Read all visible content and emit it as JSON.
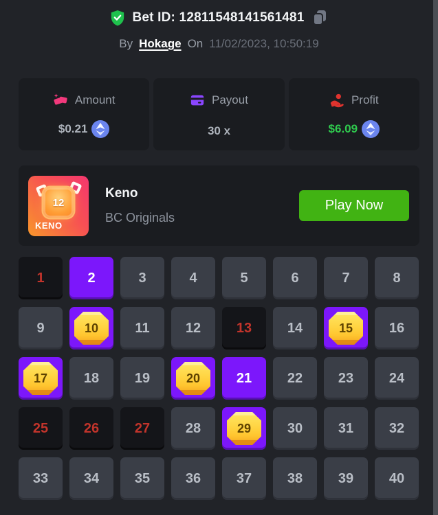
{
  "header": {
    "bet_id": "Bet ID: 12811548141561481",
    "by_label": "By",
    "username": "Hokage",
    "on_label": "On",
    "timestamp": "11/02/2023, 10:50:19"
  },
  "stats": [
    {
      "label": "Amount",
      "value": "$0.21",
      "icon": "cash-icon",
      "currency_icon": "ethereum-icon"
    },
    {
      "label": "Payout",
      "value": "30 x",
      "icon": "credit-card-icon",
      "currency_icon": null
    },
    {
      "label": "Profit",
      "value": "$6.09",
      "icon": "hand-coin-icon",
      "currency_icon": "ethereum-icon"
    }
  ],
  "game_card": {
    "art_label": "KENO",
    "art_number": "12",
    "title": "Keno",
    "provider": "BC Originals",
    "play_button_label": "Play Now"
  },
  "keno_grid": {
    "columns": 8,
    "rows": 5,
    "cells": [
      {
        "n": 1,
        "state": "drawn"
      },
      {
        "n": 2,
        "state": "picked"
      },
      {
        "n": 3,
        "state": "default"
      },
      {
        "n": 4,
        "state": "default"
      },
      {
        "n": 5,
        "state": "default"
      },
      {
        "n": 6,
        "state": "default"
      },
      {
        "n": 7,
        "state": "default"
      },
      {
        "n": 8,
        "state": "default"
      },
      {
        "n": 9,
        "state": "default"
      },
      {
        "n": 10,
        "state": "hit"
      },
      {
        "n": 11,
        "state": "default"
      },
      {
        "n": 12,
        "state": "default"
      },
      {
        "n": 13,
        "state": "drawn"
      },
      {
        "n": 14,
        "state": "default"
      },
      {
        "n": 15,
        "state": "hit"
      },
      {
        "n": 16,
        "state": "default"
      },
      {
        "n": 17,
        "state": "hit"
      },
      {
        "n": 18,
        "state": "default"
      },
      {
        "n": 19,
        "state": "default"
      },
      {
        "n": 20,
        "state": "hit"
      },
      {
        "n": 21,
        "state": "picked"
      },
      {
        "n": 22,
        "state": "default"
      },
      {
        "n": 23,
        "state": "default"
      },
      {
        "n": 24,
        "state": "default"
      },
      {
        "n": 25,
        "state": "drawn"
      },
      {
        "n": 26,
        "state": "drawn"
      },
      {
        "n": 27,
        "state": "drawn"
      },
      {
        "n": 28,
        "state": "default"
      },
      {
        "n": 29,
        "state": "hit"
      },
      {
        "n": 30,
        "state": "default"
      },
      {
        "n": 31,
        "state": "default"
      },
      {
        "n": 32,
        "state": "default"
      },
      {
        "n": 33,
        "state": "default"
      },
      {
        "n": 34,
        "state": "default"
      },
      {
        "n": 35,
        "state": "default"
      },
      {
        "n": 36,
        "state": "default"
      },
      {
        "n": 37,
        "state": "default"
      },
      {
        "n": 38,
        "state": "default"
      },
      {
        "n": 39,
        "state": "default"
      },
      {
        "n": 40,
        "state": "default"
      }
    ]
  },
  "icons": {
    "verified": "shield-check-icon",
    "copy": "copy-icon",
    "amount": "cash-icon",
    "payout": "credit-card-icon",
    "profit": "hand-coin-icon",
    "currency": "ethereum-icon",
    "hit_marker": "gold-gem-icon"
  },
  "colors": {
    "accent_purple": "#7c17fb",
    "tile_default": "#3a3e47",
    "tile_drawn_bg": "#141519",
    "drawn_number_red": "#c2342b",
    "profit_green": "#2fca4e",
    "play_button_green": "#41b313",
    "gem_gold": "#ffd23f",
    "amount_icon_pink": "#f2397c",
    "payout_icon_purple": "#8b46ff",
    "profit_icon_red": "#e0332e",
    "ethereum_blue": "#6b85ee",
    "verified_green": "#1fc14d"
  }
}
